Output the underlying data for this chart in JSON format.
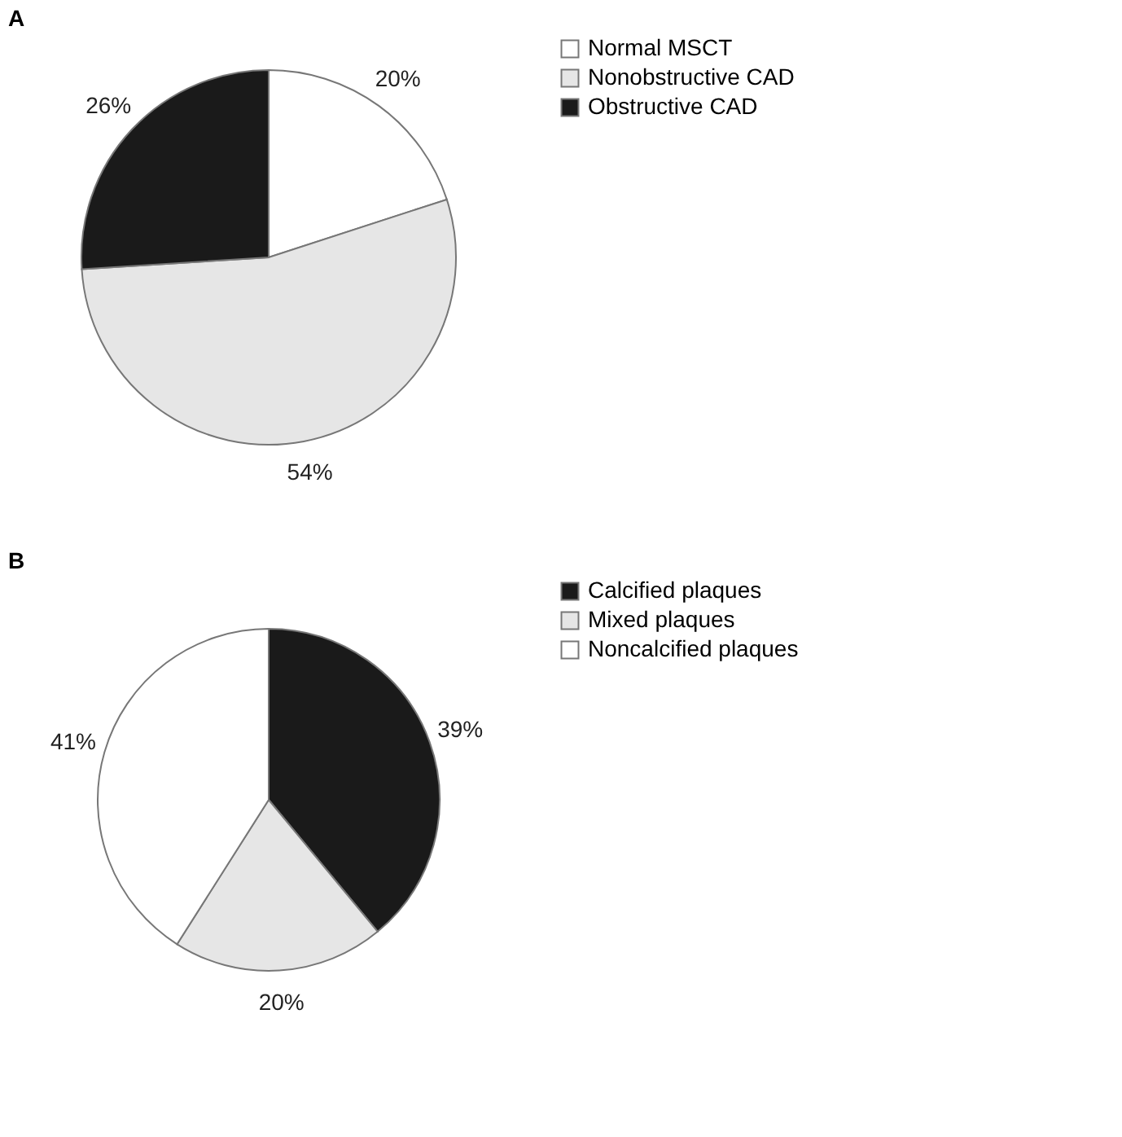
{
  "chart_data": [
    {
      "type": "pie",
      "title": "A",
      "categories": [
        "Normal MSCT",
        "Nonobstructive CAD",
        "Obstructive CAD"
      ],
      "values": [
        20,
        54,
        26
      ],
      "colors": [
        "#ffffff",
        "#e6e6e6",
        "#1a1a1a"
      ],
      "value_labels": [
        "20%",
        "54%",
        "26%"
      ],
      "legend": "right"
    },
    {
      "type": "pie",
      "title": "B",
      "categories": [
        "Calcified plaques",
        "Mixed plaques",
        "Noncalcified plaques"
      ],
      "values": [
        39,
        20,
        41
      ],
      "colors": [
        "#1a1a1a",
        "#e6e6e6",
        "#ffffff"
      ],
      "value_labels": [
        "39%",
        "20%",
        "41%"
      ],
      "legend": "right"
    }
  ]
}
